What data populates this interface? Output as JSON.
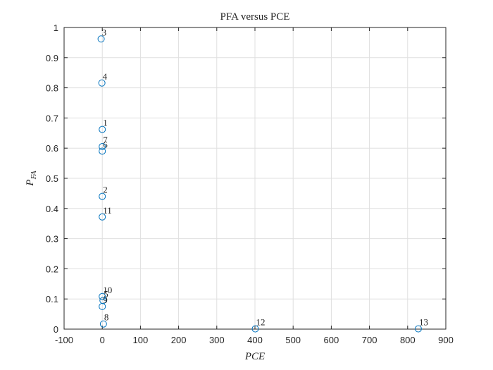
{
  "chart_data": {
    "type": "scatter",
    "title": "PFA versus PCE",
    "xlabel": "PCE",
    "ylabel": {
      "main": "P",
      "sub": "FA"
    },
    "xlim": [
      -100,
      900
    ],
    "ylim": [
      0,
      1
    ],
    "xticks": [
      -100,
      0,
      100,
      200,
      300,
      400,
      500,
      600,
      700,
      800,
      900
    ],
    "yticks": [
      0,
      0.1,
      0.2,
      0.3,
      0.4,
      0.5,
      0.6,
      0.7,
      0.8,
      0.9,
      1
    ],
    "grid": true,
    "marker_color": "#0072BD",
    "points": [
      {
        "label": "1",
        "x": 0,
        "y": 0.662
      },
      {
        "label": "2",
        "x": 0,
        "y": 0.44
      },
      {
        "label": "3",
        "x": -3,
        "y": 0.962
      },
      {
        "label": "4",
        "x": -1,
        "y": 0.816
      },
      {
        "label": "5",
        "x": 2,
        "y": 0.095
      },
      {
        "label": "6",
        "x": 0,
        "y": 0.59
      },
      {
        "label": "7",
        "x": 0,
        "y": 0.605
      },
      {
        "label": "8",
        "x": 3,
        "y": 0.017
      },
      {
        "label": "9",
        "x": 0,
        "y": 0.075
      },
      {
        "label": "10",
        "x": 0,
        "y": 0.108
      },
      {
        "label": "11",
        "x": 0,
        "y": 0.372
      },
      {
        "label": "12",
        "x": 401,
        "y": 0.001
      },
      {
        "label": "13",
        "x": 828,
        "y": 0.001
      }
    ]
  }
}
